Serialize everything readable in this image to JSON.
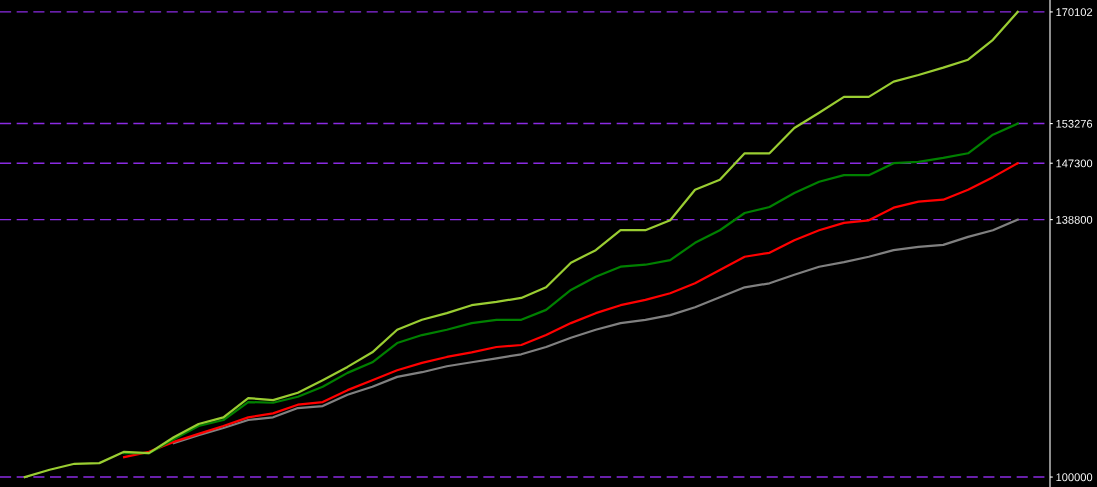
{
  "chart_data": {
    "type": "line",
    "categories": [
      null,
      null,
      null,
      null,
      null,
      null,
      null,
      null,
      null,
      null,
      null,
      null,
      null,
      null,
      null,
      null,
      null,
      null,
      null,
      null,
      null,
      null,
      null,
      null,
      null,
      null,
      null,
      null,
      null,
      null,
      null,
      null,
      null,
      null,
      null,
      null,
      null,
      null,
      null,
      null,
      null
    ],
    "series": [
      {
        "color": "#9acd32",
        "values": [
          100000,
          101100,
          102000,
          102100,
          103800,
          103600,
          106000,
          108000,
          109000,
          111900,
          111600,
          112700,
          114600,
          116600,
          118800,
          122200,
          123700,
          124700,
          125900,
          126400,
          127000,
          128600,
          132300,
          134200,
          137200,
          137200,
          138700,
          143300,
          144800,
          148800,
          148800,
          152600,
          154900,
          157300,
          157300,
          159600,
          160600,
          161700,
          162900,
          165900,
          170102
        ]
      },
      {
        "color": "#008000",
        "values": [
          null,
          null,
          null,
          null,
          103600,
          103600,
          105700,
          107700,
          108600,
          111300,
          111200,
          112100,
          113600,
          115700,
          117300,
          120200,
          121400,
          122200,
          123200,
          123700,
          123700,
          125200,
          128200,
          130200,
          131700,
          132000,
          132700,
          135300,
          137200,
          139800,
          140700,
          142800,
          144500,
          145500,
          145500,
          147300,
          147500,
          148100,
          148800,
          151600,
          153276
        ]
      },
      {
        "color": "#ff0000",
        "values": [
          null,
          null,
          null,
          null,
          103000,
          103800,
          105300,
          106500,
          107700,
          109000,
          109600,
          110900,
          111300,
          113100,
          114600,
          116100,
          117200,
          118100,
          118800,
          119600,
          119900,
          121400,
          123200,
          124700,
          125900,
          126700,
          127700,
          129200,
          131200,
          133200,
          133800,
          135700,
          137200,
          138300,
          138700,
          140600,
          141500,
          141800,
          143300,
          145200,
          147300
        ]
      },
      {
        "color": "#808080",
        "values": [
          null,
          null,
          null,
          null,
          null,
          null,
          105100,
          106300,
          107400,
          108600,
          109000,
          110400,
          110700,
          112400,
          113600,
          115100,
          115800,
          116700,
          117300,
          117900,
          118500,
          119600,
          121000,
          122200,
          123200,
          123700,
          124400,
          125600,
          127100,
          128600,
          129200,
          130500,
          131700,
          132400,
          133200,
          134200,
          134700,
          135000,
          136200,
          137200,
          138800
        ]
      }
    ],
    "ylim": [
      98500,
      171900
    ],
    "yticks": [
      100000,
      138800,
      147300,
      153276,
      170102
    ],
    "ref_lines": [
      {
        "axis": "y",
        "value": 100000,
        "color": "#8a2be2",
        "line_style": "dashed"
      },
      {
        "axis": "y",
        "value": 138800,
        "color": "#8a2be2",
        "line_style": "dashed"
      },
      {
        "axis": "y",
        "value": 147300,
        "color": "#8a2be2",
        "line_style": "dashed"
      },
      {
        "axis": "y",
        "value": 153276,
        "color": "#8a2be2",
        "line_style": "dashed"
      },
      {
        "axis": "y",
        "value": 170102,
        "color": "#8a2be2",
        "line_style": "dashed"
      }
    ],
    "tick_labels": "y",
    "grid": false,
    "legend": false,
    "marker": "none",
    "line_style": "solid"
  }
}
